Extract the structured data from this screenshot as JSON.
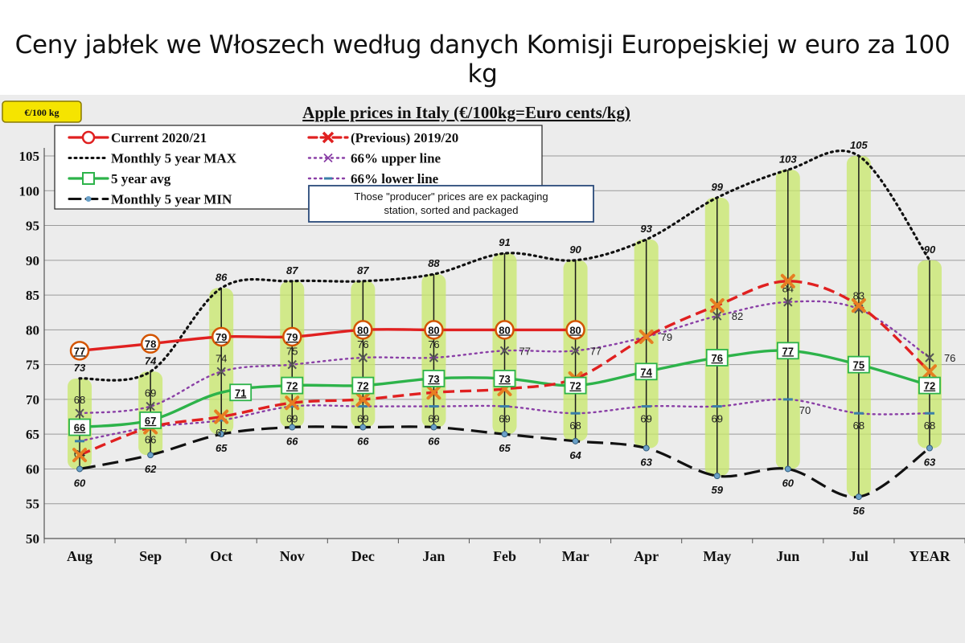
{
  "page_title": "Ceny jabłek we Włoszech według danych Komisji Europejskiej w euro za 100 kg",
  "unit_badge": "€/100 kg",
  "note_box": [
    "Those \"producer\" prices are ex packaging",
    "station, sorted and packaged"
  ],
  "colors": {
    "current": "#e02020",
    "previous": "#e02020",
    "max": "#111111",
    "upper": "#8a3fa6",
    "lower": "#8a3fa6",
    "avg": "#2db34a",
    "min": "#111111",
    "band": "#c8e86a",
    "badge": "#f5e400"
  },
  "chart_data": {
    "type": "line",
    "title": "Apple prices in Italy (€/100kg=Euro cents/kg)",
    "categories": [
      "Aug",
      "Sep",
      "Oct",
      "Nov",
      "Dec",
      "Jan",
      "Feb",
      "Mar",
      "Apr",
      "May",
      "Jun",
      "Jul",
      "YEAR"
    ],
    "ylim": [
      50,
      105
    ],
    "yticks": [
      50,
      55,
      60,
      65,
      70,
      75,
      80,
      85,
      90,
      95,
      100,
      105
    ],
    "grid": true,
    "legend_position": "top-left",
    "series": [
      {
        "name": "Current 2020/21",
        "key": "current",
        "values": [
          77,
          78,
          79,
          79,
          80,
          80,
          80,
          80,
          null,
          null,
          null,
          null,
          null
        ]
      },
      {
        "name": "(Previous) 2019/20",
        "key": "previous",
        "values": [
          62,
          66,
          67.5,
          69.5,
          70,
          71,
          71.5,
          73,
          79,
          83.5,
          87,
          83.5,
          74
        ]
      },
      {
        "name": "Monthly 5 year MAX",
        "key": "max",
        "values": [
          73,
          74,
          86,
          87,
          87,
          88,
          91,
          90,
          93,
          99,
          103,
          105,
          90
        ]
      },
      {
        "name": "66% upper line",
        "key": "upper",
        "values": [
          68,
          69,
          74,
          75,
          76,
          76,
          77,
          77,
          79,
          82,
          84,
          83,
          76
        ]
      },
      {
        "name": "5 year avg",
        "key": "avg",
        "values": [
          66,
          67,
          71,
          72,
          72,
          73,
          73,
          72,
          74,
          76,
          77,
          75,
          72
        ]
      },
      {
        "name": "66% lower line",
        "key": "lower",
        "values": [
          64,
          66,
          67,
          69,
          69,
          69,
          69,
          68,
          69,
          69,
          70,
          68,
          68
        ]
      },
      {
        "name": "Monthly 5 year MIN",
        "key": "min",
        "values": [
          60,
          62,
          65,
          66,
          66,
          66,
          65,
          64,
          63,
          59,
          60,
          56,
          63
        ]
      }
    ]
  }
}
